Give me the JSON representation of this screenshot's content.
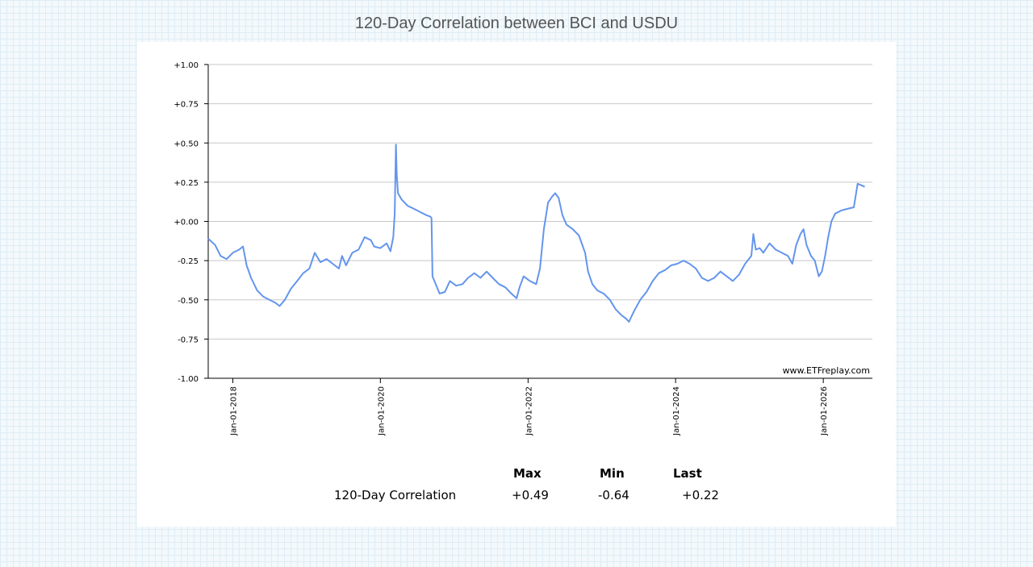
{
  "title": "120-Day Correlation between BCI and USDU",
  "chart_data": {
    "type": "line",
    "title": "120-Day Correlation between BCI and USDU",
    "ylim": [
      -1.0,
      1.0
    ],
    "yticks": [
      "+1.00",
      "+0.75",
      "+0.50",
      "+0.25",
      "+0.00",
      "-0.25",
      "-0.50",
      "-0.75",
      "-1.00"
    ],
    "xlim": [
      "2017-09-01",
      "2026-09-01"
    ],
    "xticks": [
      "Jan-01-2018",
      "Jan-01-2020",
      "Jan-01-2022",
      "Jan-01-2024",
      "Jan-01-2026"
    ],
    "grid": true,
    "line_color": "#6495ed",
    "series": [
      {
        "name": "120-Day Correlation",
        "points": [
          [
            "2017-09-01",
            -0.11
          ],
          [
            "2017-10-05",
            -0.15
          ],
          [
            "2017-11-01",
            -0.22
          ],
          [
            "2017-12-01",
            -0.24
          ],
          [
            "2018-01-01",
            -0.2
          ],
          [
            "2018-02-01",
            -0.18
          ],
          [
            "2018-02-20",
            -0.16
          ],
          [
            "2018-03-10",
            -0.28
          ],
          [
            "2018-04-01",
            -0.36
          ],
          [
            "2018-05-01",
            -0.44
          ],
          [
            "2018-06-01",
            -0.48
          ],
          [
            "2018-07-01",
            -0.5
          ],
          [
            "2018-08-01",
            -0.52
          ],
          [
            "2018-08-20",
            -0.54
          ],
          [
            "2018-09-15",
            -0.5
          ],
          [
            "2018-10-15",
            -0.43
          ],
          [
            "2018-11-15",
            -0.38
          ],
          [
            "2018-12-15",
            -0.33
          ],
          [
            "2019-01-15",
            -0.3
          ],
          [
            "2019-02-10",
            -0.2
          ],
          [
            "2019-03-10",
            -0.26
          ],
          [
            "2019-04-10",
            -0.24
          ],
          [
            "2019-05-10",
            -0.27
          ],
          [
            "2019-06-10",
            -0.3
          ],
          [
            "2019-06-25",
            -0.22
          ],
          [
            "2019-07-15",
            -0.28
          ],
          [
            "2019-08-15",
            -0.2
          ],
          [
            "2019-09-15",
            -0.18
          ],
          [
            "2019-10-15",
            -0.1
          ],
          [
            "2019-11-15",
            -0.12
          ],
          [
            "2019-12-01",
            -0.16
          ],
          [
            "2020-01-01",
            -0.17
          ],
          [
            "2020-02-01",
            -0.14
          ],
          [
            "2020-02-20",
            -0.19
          ],
          [
            "2020-03-05",
            -0.1
          ],
          [
            "2020-03-12",
            0.05
          ],
          [
            "2020-03-18",
            0.49
          ],
          [
            "2020-03-22",
            0.3
          ],
          [
            "2020-03-28",
            0.18
          ],
          [
            "2020-04-15",
            0.14
          ],
          [
            "2020-05-15",
            0.1
          ],
          [
            "2020-06-15",
            0.08
          ],
          [
            "2020-07-15",
            0.06
          ],
          [
            "2020-08-15",
            0.04
          ],
          [
            "2020-09-05",
            0.03
          ],
          [
            "2020-09-10",
            0.02
          ],
          [
            "2020-09-15",
            -0.35
          ],
          [
            "2020-10-01",
            -0.4
          ],
          [
            "2020-10-20",
            -0.46
          ],
          [
            "2020-11-15",
            -0.45
          ],
          [
            "2020-12-10",
            -0.38
          ],
          [
            "2021-01-10",
            -0.41
          ],
          [
            "2021-02-10",
            -0.4
          ],
          [
            "2021-03-10",
            -0.36
          ],
          [
            "2021-04-10",
            -0.33
          ],
          [
            "2021-05-10",
            -0.36
          ],
          [
            "2021-06-10",
            -0.32
          ],
          [
            "2021-07-10",
            -0.36
          ],
          [
            "2021-08-10",
            -0.4
          ],
          [
            "2021-09-10",
            -0.42
          ],
          [
            "2021-10-10",
            -0.46
          ],
          [
            "2021-11-05",
            -0.49
          ],
          [
            "2021-11-20",
            -0.42
          ],
          [
            "2021-12-10",
            -0.35
          ],
          [
            "2022-01-10",
            -0.38
          ],
          [
            "2022-02-10",
            -0.4
          ],
          [
            "2022-03-01",
            -0.3
          ],
          [
            "2022-03-20",
            -0.05
          ],
          [
            "2022-04-10",
            0.12
          ],
          [
            "2022-05-01",
            0.16
          ],
          [
            "2022-05-15",
            0.18
          ],
          [
            "2022-06-01",
            0.15
          ],
          [
            "2022-06-20",
            0.04
          ],
          [
            "2022-07-10",
            -0.02
          ],
          [
            "2022-08-10",
            -0.05
          ],
          [
            "2022-09-10",
            -0.09
          ],
          [
            "2022-10-10",
            -0.2
          ],
          [
            "2022-10-25",
            -0.32
          ],
          [
            "2022-11-15",
            -0.4
          ],
          [
            "2022-12-10",
            -0.44
          ],
          [
            "2023-01-10",
            -0.46
          ],
          [
            "2023-02-10",
            -0.5
          ],
          [
            "2023-03-10",
            -0.56
          ],
          [
            "2023-04-10",
            -0.6
          ],
          [
            "2023-05-01",
            -0.62
          ],
          [
            "2023-05-15",
            -0.64
          ],
          [
            "2023-06-10",
            -0.57
          ],
          [
            "2023-07-10",
            -0.5
          ],
          [
            "2023-08-10",
            -0.45
          ],
          [
            "2023-09-10",
            -0.38
          ],
          [
            "2023-10-10",
            -0.33
          ],
          [
            "2023-11-10",
            -0.31
          ],
          [
            "2023-12-10",
            -0.28
          ],
          [
            "2024-01-10",
            -0.27
          ],
          [
            "2024-02-10",
            -0.25
          ],
          [
            "2024-03-10",
            -0.27
          ],
          [
            "2024-04-10",
            -0.3
          ],
          [
            "2024-05-10",
            -0.36
          ],
          [
            "2024-06-10",
            -0.38
          ],
          [
            "2024-07-10",
            -0.36
          ],
          [
            "2024-08-10",
            -0.32
          ],
          [
            "2024-09-10",
            -0.35
          ],
          [
            "2024-10-10",
            -0.38
          ],
          [
            "2024-11-10",
            -0.34
          ],
          [
            "2024-12-10",
            -0.27
          ],
          [
            "2025-01-10",
            -0.22
          ],
          [
            "2025-01-20",
            -0.08
          ],
          [
            "2025-02-01",
            -0.18
          ],
          [
            "2025-02-20",
            -0.17
          ],
          [
            "2025-03-10",
            -0.2
          ],
          [
            "2025-04-10",
            -0.14
          ],
          [
            "2025-05-10",
            -0.18
          ],
          [
            "2025-06-10",
            -0.2
          ],
          [
            "2025-07-10",
            -0.22
          ],
          [
            "2025-08-01",
            -0.27
          ],
          [
            "2025-08-20",
            -0.15
          ],
          [
            "2025-09-10",
            -0.08
          ],
          [
            "2025-09-25",
            -0.05
          ],
          [
            "2025-10-10",
            -0.15
          ],
          [
            "2025-11-01",
            -0.22
          ],
          [
            "2025-11-20",
            -0.25
          ],
          [
            "2025-12-10",
            -0.35
          ],
          [
            "2025-12-25",
            -0.32
          ],
          [
            "2026-01-10",
            -0.22
          ],
          [
            "2026-01-25",
            -0.1
          ],
          [
            "2026-02-10",
            0.0
          ],
          [
            "2026-03-01",
            0.05
          ],
          [
            "2026-04-01",
            0.07
          ],
          [
            "2026-05-01",
            0.08
          ],
          [
            "2026-06-01",
            0.09
          ],
          [
            "2026-06-20",
            0.24
          ],
          [
            "2026-07-10",
            0.23
          ],
          [
            "2026-07-25",
            0.22
          ]
        ]
      }
    ],
    "watermark": "www.ETFreplay.com"
  },
  "stats": {
    "headers": [
      "Max",
      "Min",
      "Last"
    ],
    "row_label": "120-Day Correlation",
    "values": [
      "+0.49",
      "-0.64",
      "+0.22"
    ]
  }
}
